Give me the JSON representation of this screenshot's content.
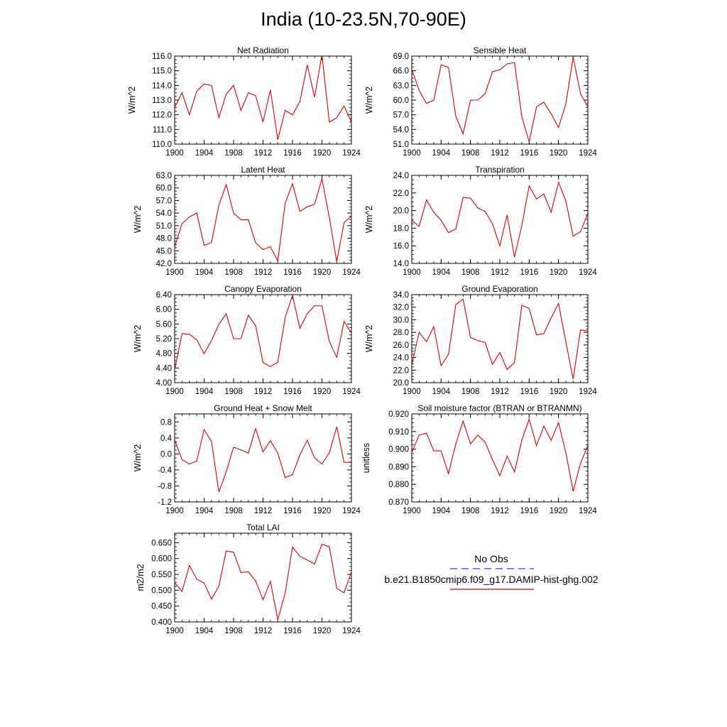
{
  "title": "India (10-23.5N,70-90E)",
  "legend": {
    "obs_label": "No Obs",
    "obs_color": "#3b3bd0",
    "model_label": "b.e21.B1850cmip6.f09_g17.DAMIP-hist-ghg.002",
    "model_color": "#e00000"
  },
  "chart_data": [
    {
      "type": "line",
      "title": "Net Radiation",
      "ylabel": "W/m^2",
      "ylim": [
        110,
        116
      ],
      "yticks": [
        "110.0",
        "111.0",
        "112.0",
        "113.0",
        "114.0",
        "115.0",
        "116.0"
      ],
      "xlim": [
        1900,
        1924
      ],
      "xticks": [
        "1900",
        "1904",
        "1908",
        "1912",
        "1916",
        "1920",
        "1924"
      ],
      "series": [
        {
          "values": [
            112.5,
            113.5,
            112.0,
            113.6,
            114.1,
            114.0,
            111.8,
            113.4,
            114.0,
            112.3,
            113.5,
            113.3,
            111.5,
            113.7,
            110.3,
            112.3,
            112.0,
            112.9,
            115.4,
            113.2,
            116.1,
            111.5,
            111.8,
            112.6,
            111.5
          ]
        }
      ]
    },
    {
      "type": "line",
      "title": "Sensible Heat",
      "ylabel": "W/m^2",
      "ylim": [
        51,
        69
      ],
      "yticks": [
        "51.0",
        "54.0",
        "57.0",
        "60.0",
        "63.0",
        "66.0",
        "69.0"
      ],
      "xlim": [
        1900,
        1924
      ],
      "xticks": [
        "1900",
        "1904",
        "1908",
        "1912",
        "1916",
        "1920",
        "1924"
      ],
      "series": [
        {
          "values": [
            66.3,
            62.0,
            59.3,
            60.0,
            67.2,
            66.7,
            56.7,
            53.1,
            60.0,
            60.0,
            61.3,
            65.8,
            66.2,
            67.4,
            67.7,
            56.6,
            51.5,
            58.6,
            59.6,
            57.2,
            54.4,
            59.2,
            68.8,
            61.3,
            58.6
          ]
        }
      ]
    },
    {
      "type": "line",
      "title": "Latent Heat",
      "ylabel": "W/m^2",
      "ylim": [
        42,
        63
      ],
      "yticks": [
        "42.0",
        "45.0",
        "48.0",
        "51.0",
        "54.0",
        "57.0",
        "60.0",
        "63.0"
      ],
      "xlim": [
        1900,
        1924
      ],
      "xticks": [
        "1900",
        "1904",
        "1908",
        "1912",
        "1916",
        "1920",
        "1924"
      ],
      "series": [
        {
          "values": [
            45.9,
            51.5,
            53.1,
            54.0,
            46.3,
            47.0,
            55.9,
            60.8,
            54.0,
            52.4,
            52.4,
            46.9,
            45.3,
            46.0,
            42.6,
            56.3,
            61.0,
            54.4,
            55.5,
            56.1,
            62.2,
            52.9,
            42.4,
            51.7,
            53.3
          ]
        }
      ]
    },
    {
      "type": "line",
      "title": "Transpiration",
      "ylabel": "W/m^2",
      "ylim": [
        14,
        24
      ],
      "yticks": [
        "14.0",
        "16.0",
        "18.0",
        "20.0",
        "22.0",
        "24.0"
      ],
      "xlim": [
        1900,
        1924
      ],
      "xticks": [
        "1900",
        "1904",
        "1908",
        "1912",
        "1916",
        "1920",
        "1924"
      ],
      "series": [
        {
          "values": [
            18.9,
            18.2,
            21.2,
            19.8,
            18.9,
            17.5,
            17.9,
            21.5,
            21.4,
            20.3,
            19.9,
            18.5,
            16.0,
            19.5,
            14.7,
            18.3,
            22.8,
            21.3,
            21.9,
            19.8,
            23.2,
            21.1,
            17.1,
            17.6,
            19.7
          ]
        }
      ]
    },
    {
      "type": "line",
      "title": "Canopy Evaporation",
      "ylabel": "W/m^2",
      "ylim": [
        4.0,
        6.4
      ],
      "yticks": [
        "4.00",
        "4.40",
        "4.80",
        "5.20",
        "5.60",
        "6.00",
        "6.40"
      ],
      "xlim": [
        1900,
        1924
      ],
      "xticks": [
        "1900",
        "1904",
        "1908",
        "1912",
        "1916",
        "1920",
        "1924"
      ],
      "series": [
        {
          "values": [
            4.35,
            5.34,
            5.32,
            5.17,
            4.79,
            5.15,
            5.59,
            5.88,
            5.2,
            5.2,
            5.84,
            5.55,
            4.55,
            4.44,
            4.56,
            5.77,
            6.38,
            5.48,
            5.88,
            6.1,
            6.09,
            5.12,
            4.69,
            5.67,
            5.35
          ]
        }
      ]
    },
    {
      "type": "line",
      "title": "Ground Evaporation",
      "ylabel": "W/m^2",
      "ylim": [
        20,
        34
      ],
      "yticks": [
        "20.0",
        "22.0",
        "24.0",
        "26.0",
        "28.0",
        "30.0",
        "32.0",
        "34.0"
      ],
      "xlim": [
        1900,
        1924
      ],
      "xticks": [
        "1900",
        "1904",
        "1908",
        "1912",
        "1916",
        "1920",
        "1924"
      ],
      "series": [
        {
          "values": [
            22.8,
            28.0,
            26.5,
            28.9,
            22.7,
            24.5,
            32.4,
            33.3,
            27.2,
            26.7,
            26.4,
            22.9,
            24.8,
            22.1,
            23.2,
            32.3,
            31.8,
            27.6,
            27.8,
            30.3,
            32.6,
            26.5,
            20.6,
            28.4,
            28.2
          ]
        }
      ]
    },
    {
      "type": "line",
      "title": "Ground Heat + Snow Melt",
      "ylabel": "W/m^2",
      "ylim": [
        -1.2,
        1.0
      ],
      "yticks": [
        "-1.2",
        "-0.8",
        "-0.4",
        "0.0",
        "0.4",
        "0.8"
      ],
      "xlim": [
        1900,
        1924
      ],
      "xticks": [
        "1900",
        "1904",
        "1908",
        "1912",
        "1916",
        "1920",
        "1924"
      ],
      "series": [
        {
          "values": [
            0.35,
            -0.14,
            -0.25,
            -0.18,
            0.61,
            0.31,
            -0.95,
            -0.45,
            0.17,
            0.1,
            0.02,
            0.63,
            0.05,
            0.33,
            0.02,
            -0.59,
            -0.52,
            -0.02,
            0.34,
            -0.1,
            -0.25,
            0.03,
            0.68,
            -0.21,
            -0.21
          ]
        }
      ]
    },
    {
      "type": "line",
      "title": "Soil moisture factor (BTRAN or BTRANMN)",
      "ylabel": "unitless",
      "ylim": [
        0.87,
        0.92
      ],
      "yticks": [
        "0.870",
        "0.880",
        "0.890",
        "0.900",
        "0.910",
        "0.920"
      ],
      "xlim": [
        1900,
        1924
      ],
      "xticks": [
        "1900",
        "1904",
        "1908",
        "1912",
        "1916",
        "1920",
        "1924"
      ],
      "series": [
        {
          "values": [
            0.898,
            0.908,
            0.909,
            0.899,
            0.899,
            0.886,
            0.903,
            0.916,
            0.903,
            0.908,
            0.904,
            0.894,
            0.885,
            0.896,
            0.887,
            0.905,
            0.917,
            0.902,
            0.913,
            0.905,
            0.915,
            0.898,
            0.876,
            0.892,
            0.902
          ]
        }
      ]
    },
    {
      "type": "line",
      "title": "Total LAI",
      "ylabel": "m2/m2",
      "ylim": [
        0.4,
        0.68
      ],
      "yticks": [
        "0.400",
        "0.450",
        "0.500",
        "0.550",
        "0.600",
        "0.650"
      ],
      "xlim": [
        1900,
        1924
      ],
      "xticks": [
        "1900",
        "1904",
        "1908",
        "1912",
        "1916",
        "1920",
        "1924"
      ],
      "series": [
        {
          "values": [
            0.524,
            0.496,
            0.578,
            0.535,
            0.523,
            0.472,
            0.513,
            0.624,
            0.62,
            0.556,
            0.558,
            0.529,
            0.47,
            0.528,
            0.407,
            0.49,
            0.636,
            0.607,
            0.595,
            0.583,
            0.645,
            0.637,
            0.506,
            0.492,
            0.558
          ]
        }
      ]
    }
  ]
}
